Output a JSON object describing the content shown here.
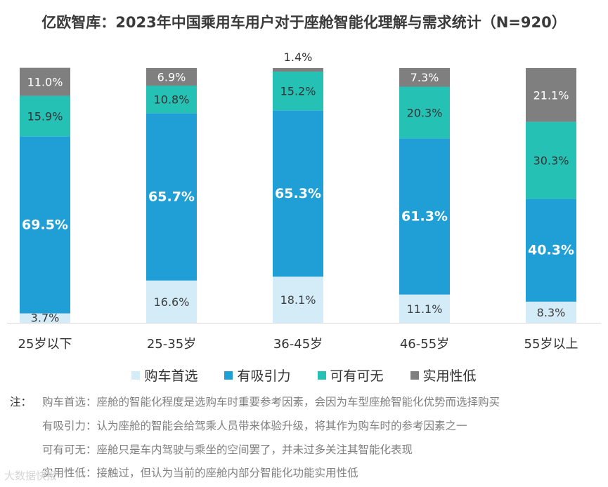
{
  "title": "亿欧智库：2023年中国乘用车用户对于座舱智能化理解与需求统计（N=920）",
  "chart_data": {
    "type": "bar",
    "stacked": true,
    "categories": [
      "25岁以下",
      "25-35岁",
      "36-45岁",
      "46-55岁",
      "55岁以上"
    ],
    "series": [
      {
        "name": "购车首选",
        "values": [
          3.7,
          16.6,
          18.1,
          11.1,
          8.3
        ],
        "labels": [
          "3.7%",
          "16.6%",
          "18.1%",
          "11.1%",
          "8.3%"
        ],
        "color": "#d3ecf8",
        "label_color": "#404040",
        "bold": false
      },
      {
        "name": "有吸引力",
        "values": [
          69.5,
          65.7,
          65.3,
          61.3,
          40.3
        ],
        "labels": [
          "69.5%",
          "65.7%",
          "65.3%",
          "61.3%",
          "40.3%"
        ],
        "color": "#1f9fd6",
        "label_color": "#ffffff",
        "bold": true
      },
      {
        "name": "可有可无",
        "values": [
          15.9,
          10.8,
          15.2,
          20.3,
          30.3
        ],
        "labels": [
          "15.9%",
          "10.8%",
          "15.2%",
          "20.3%",
          "30.3%"
        ],
        "color": "#26c1b5",
        "label_color": "#333333",
        "bold": false
      },
      {
        "name": "实用性低",
        "values": [
          11.0,
          6.9,
          1.4,
          7.3,
          21.1
        ],
        "labels": [
          "11.0%",
          "6.9%",
          "1.4%",
          "7.3%",
          "21.1%"
        ],
        "color": "#7f7f7f",
        "label_color": "#ffffff",
        "bold": false
      }
    ],
    "ylim": [
      0,
      100
    ],
    "grid": false,
    "legend_position": "bottom"
  },
  "notes": {
    "mark": "注：",
    "lines": [
      "购车首选：座舱的智能化程度是选购车时重要参考因素，会因为车型座舱智能化优势而选择购买",
      "有吸引力：认为座舱的智能会给驾乘人员带来体验升级，将其作为购车时的参考因素之一",
      "可有可无：座舱只是车内驾驶与乘坐的空间罢了，并未过多关注其智能化表现",
      "实用性低：接触过，但认为当前的座舱内部分智能化功能实用性低"
    ]
  },
  "watermark": "大数据快报"
}
